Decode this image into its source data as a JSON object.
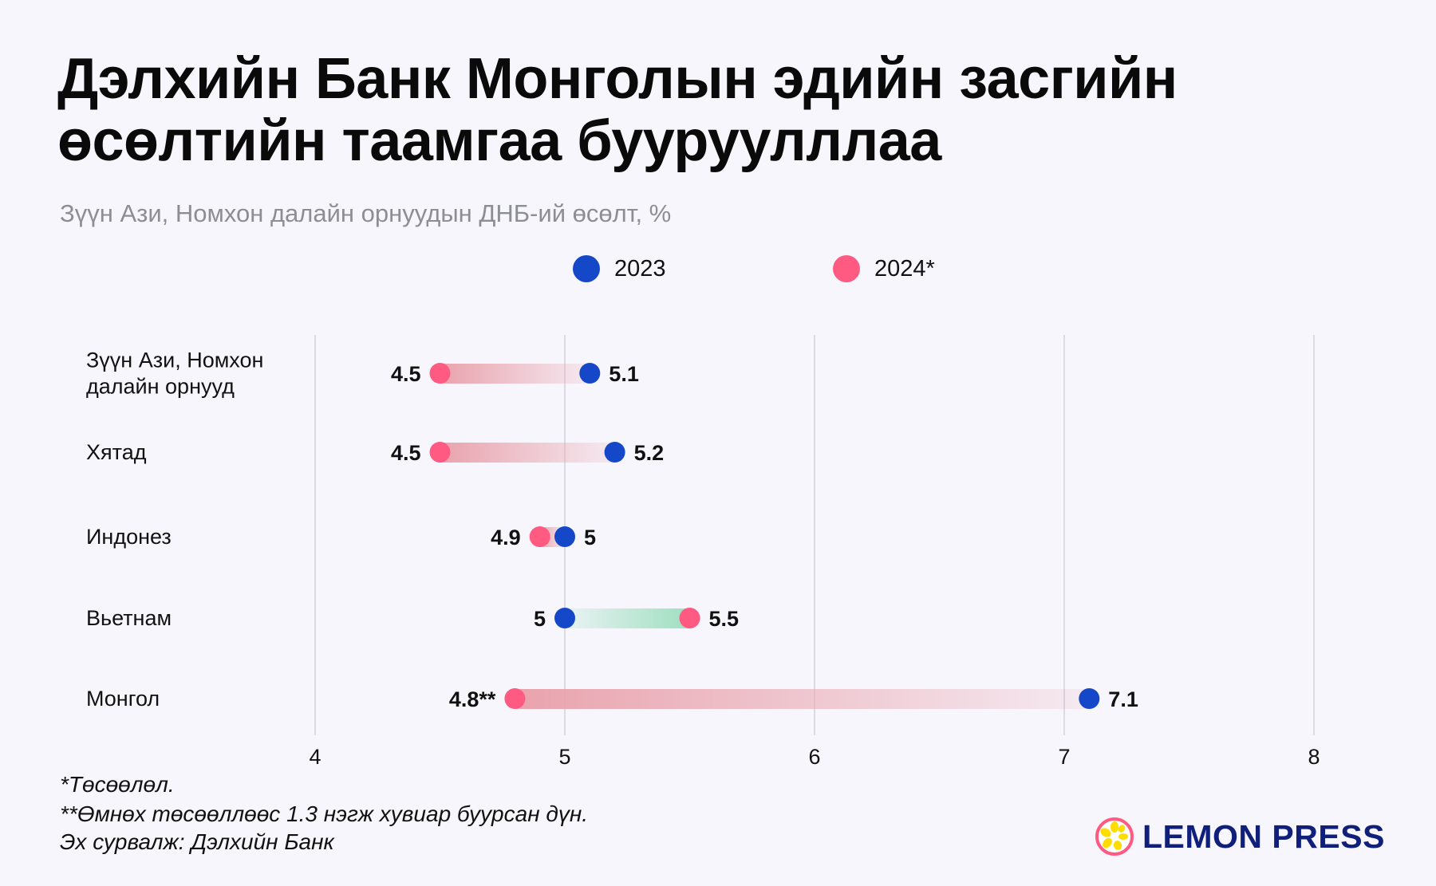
{
  "title": "Дэлхийн Банк Монголын эдийн засгийн өсөлтийн таамгаа бууруулллаа",
  "subtitle": "Зүүн Ази, Номхон далайн орнуудын ДНБ-ий өсөлт, %",
  "colors": {
    "y2023": "#1448c8",
    "y2024": "#ff5a81",
    "decrease_bar": "#e9a3ad",
    "increase_bar": "#9fdfc0",
    "background": "#f7f6fd"
  },
  "chart_data": {
    "type": "dumbbell",
    "title": "Дэлхийн Банк Монголын эдийн засгийн өсөлтийн таамгаа бууруулллаа",
    "subtitle": "Зүүн Ази, Номхон далайн орнуудын ДНБ-ий өсөлт, %",
    "categories": [
      [
        "Зүүн Ази, Номхон",
        "далайн орнууд"
      ],
      [
        "Хятад"
      ],
      [
        "Индонез"
      ],
      [
        "Вьетнам"
      ],
      [
        "Монгол"
      ]
    ],
    "series": [
      {
        "name": "2023",
        "values": [
          5.1,
          5.2,
          5,
          5,
          7.1
        ],
        "labels": [
          "5.1",
          "5.2",
          "5",
          "5",
          "7.1"
        ]
      },
      {
        "name": "2024*",
        "values": [
          4.5,
          4.5,
          4.9,
          5.5,
          4.8
        ],
        "labels": [
          "4.5",
          "4.5",
          "4.9",
          "5.5",
          "4.8**"
        ]
      }
    ],
    "xlim": [
      4,
      8
    ],
    "xticks": [
      "4",
      "5",
      "6",
      "7",
      "8"
    ],
    "grid": true,
    "legend": "top-center"
  },
  "footnotes": [
    "*Төсөөлөл.",
    "**Өмнөх төсөөллөөс 1.3 нэгж хувиар буурсан дүн.",
    "Эх сурвалж: Дэлхийн Банк"
  ],
  "logo": {
    "text": "LEMON PRESS",
    "icon": "lemon-slice-icon"
  }
}
